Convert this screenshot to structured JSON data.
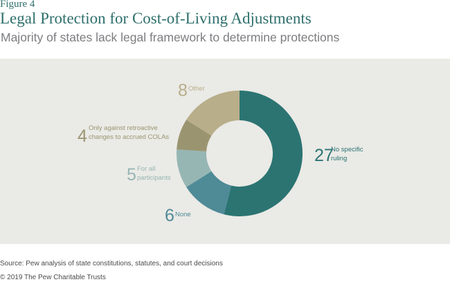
{
  "header": {
    "figure_label": "Figure 4",
    "title": "Legal Protection for Cost-of-Living Adjustments",
    "subtitle": "Majority of states lack legal framework to determine protections"
  },
  "footer": {
    "source": "Source: Pew analysis of state constitutions, statutes, and court decisions",
    "copyright": "© 2019 The Pew Charitable Trusts"
  },
  "chart_data": {
    "type": "pie",
    "donut": true,
    "slices": [
      {
        "value": 27,
        "value_label": "27",
        "label_lines": [
          "No specific",
          "ruling"
        ],
        "color": "#2b7472"
      },
      {
        "value": 6,
        "value_label": "6",
        "label_lines": [
          "None"
        ],
        "color": "#4f8a97"
      },
      {
        "value": 5,
        "value_label": "5",
        "label_lines": [
          "For all",
          "participants"
        ],
        "color": "#96b6b4"
      },
      {
        "value": 4,
        "value_label": "4",
        "label_lines": [
          "Only against retroactive",
          "changes to accrued COLAs"
        ],
        "color": "#9a9570"
      },
      {
        "value": 8,
        "value_label": "8",
        "label_lines": [
          "Other"
        ],
        "color": "#b9ae8a"
      }
    ]
  }
}
